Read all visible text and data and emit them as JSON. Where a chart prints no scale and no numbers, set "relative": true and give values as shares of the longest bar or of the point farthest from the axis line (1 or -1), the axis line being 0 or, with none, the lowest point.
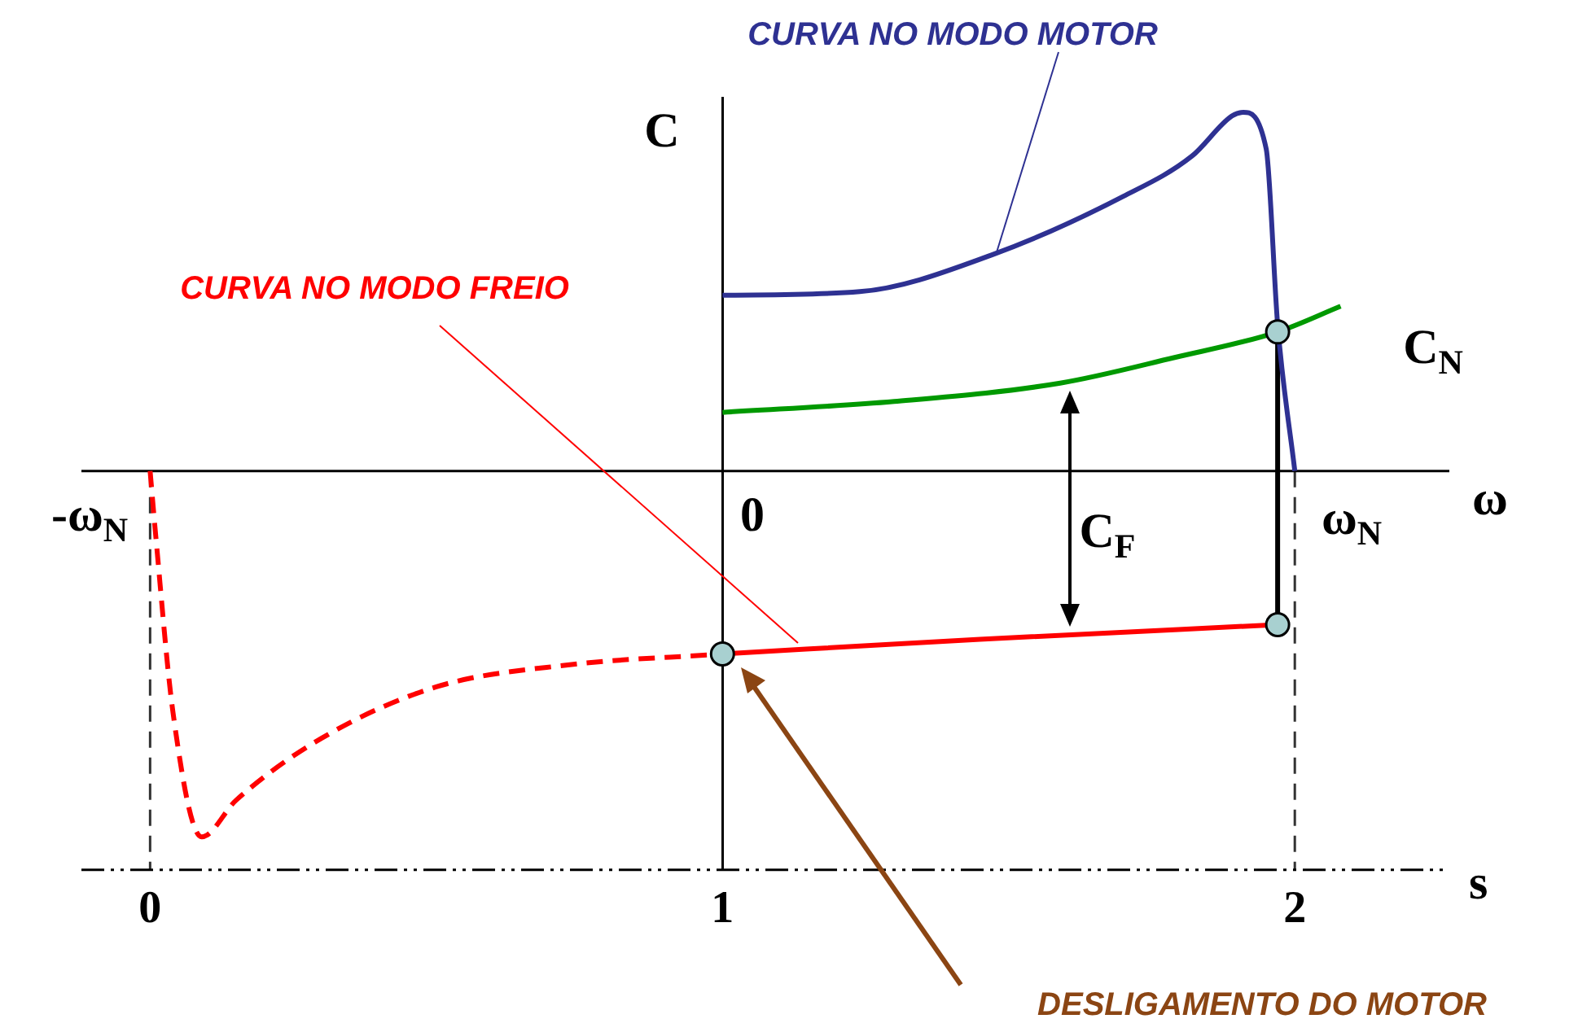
{
  "chart_data": {
    "type": "line",
    "relative": true,
    "xlabel": "s",
    "ylabel": "C",
    "xlim": [
      -0.12,
      2.27
    ],
    "xticks": [
      0,
      1,
      2
    ],
    "series": [
      {
        "color": "#2e3192",
        "x": [
          1,
          1.24,
          1.47,
          1.7,
          1.82,
          1.89,
          1.91,
          1.95,
          1.97,
          2.0
        ],
        "values": [
          0.48,
          0.49,
          0.59,
          0.75,
          0.86,
          0.97,
          0.98,
          0.88,
          0.4,
          0
        ]
      },
      {
        "color": "#009900",
        "x": [
          1,
          1.3,
          1.59,
          1.79,
          1.97,
          2.08
        ],
        "values": [
          0.16,
          0.19,
          0.24,
          0.31,
          0.38,
          0.45
        ]
      },
      {
        "color": "#ff0000",
        "x": [
          1,
          1.45,
          1.97
        ],
        "values": [
          -0.5,
          -0.46,
          -0.42
        ]
      },
      {
        "color": "#ff0000",
        "line_style": "dashed",
        "x": [
          0,
          0.01,
          0.04,
          0.09,
          0.15,
          0.3,
          0.5,
          0.73,
          1
        ],
        "values": [
          0,
          -0.18,
          -0.66,
          -1.0,
          -0.9,
          -0.73,
          -0.59,
          -0.53,
          -0.5
        ]
      },
      {
        "color": "#000000",
        "x": [
          1.97,
          1.97
        ],
        "values": [
          -0.42,
          0.38
        ]
      },
      {
        "type": "scatter",
        "color": "#a8d0d0",
        "marker": "circle",
        "x": [
          1,
          1.97,
          1.97
        ],
        "values": [
          -0.5,
          0.38,
          -0.42
        ]
      }
    ],
    "ref_lines": [
      {
        "axis": "x",
        "value": 0,
        "line_style": "dashed"
      },
      {
        "axis": "x",
        "value": 2,
        "line_style": "dashed"
      }
    ],
    "annotations": [
      "CURVA NO MODO MOTOR",
      "CURVA NO MODO FREIO",
      "DESLIGAMENTO DO MOTOR",
      "C$_{N}$",
      "C$_{F}$",
      "-ω$_{N}$",
      "0",
      "ω$_{N}$",
      "ω"
    ],
    "legend": false,
    "marker": "none"
  }
}
